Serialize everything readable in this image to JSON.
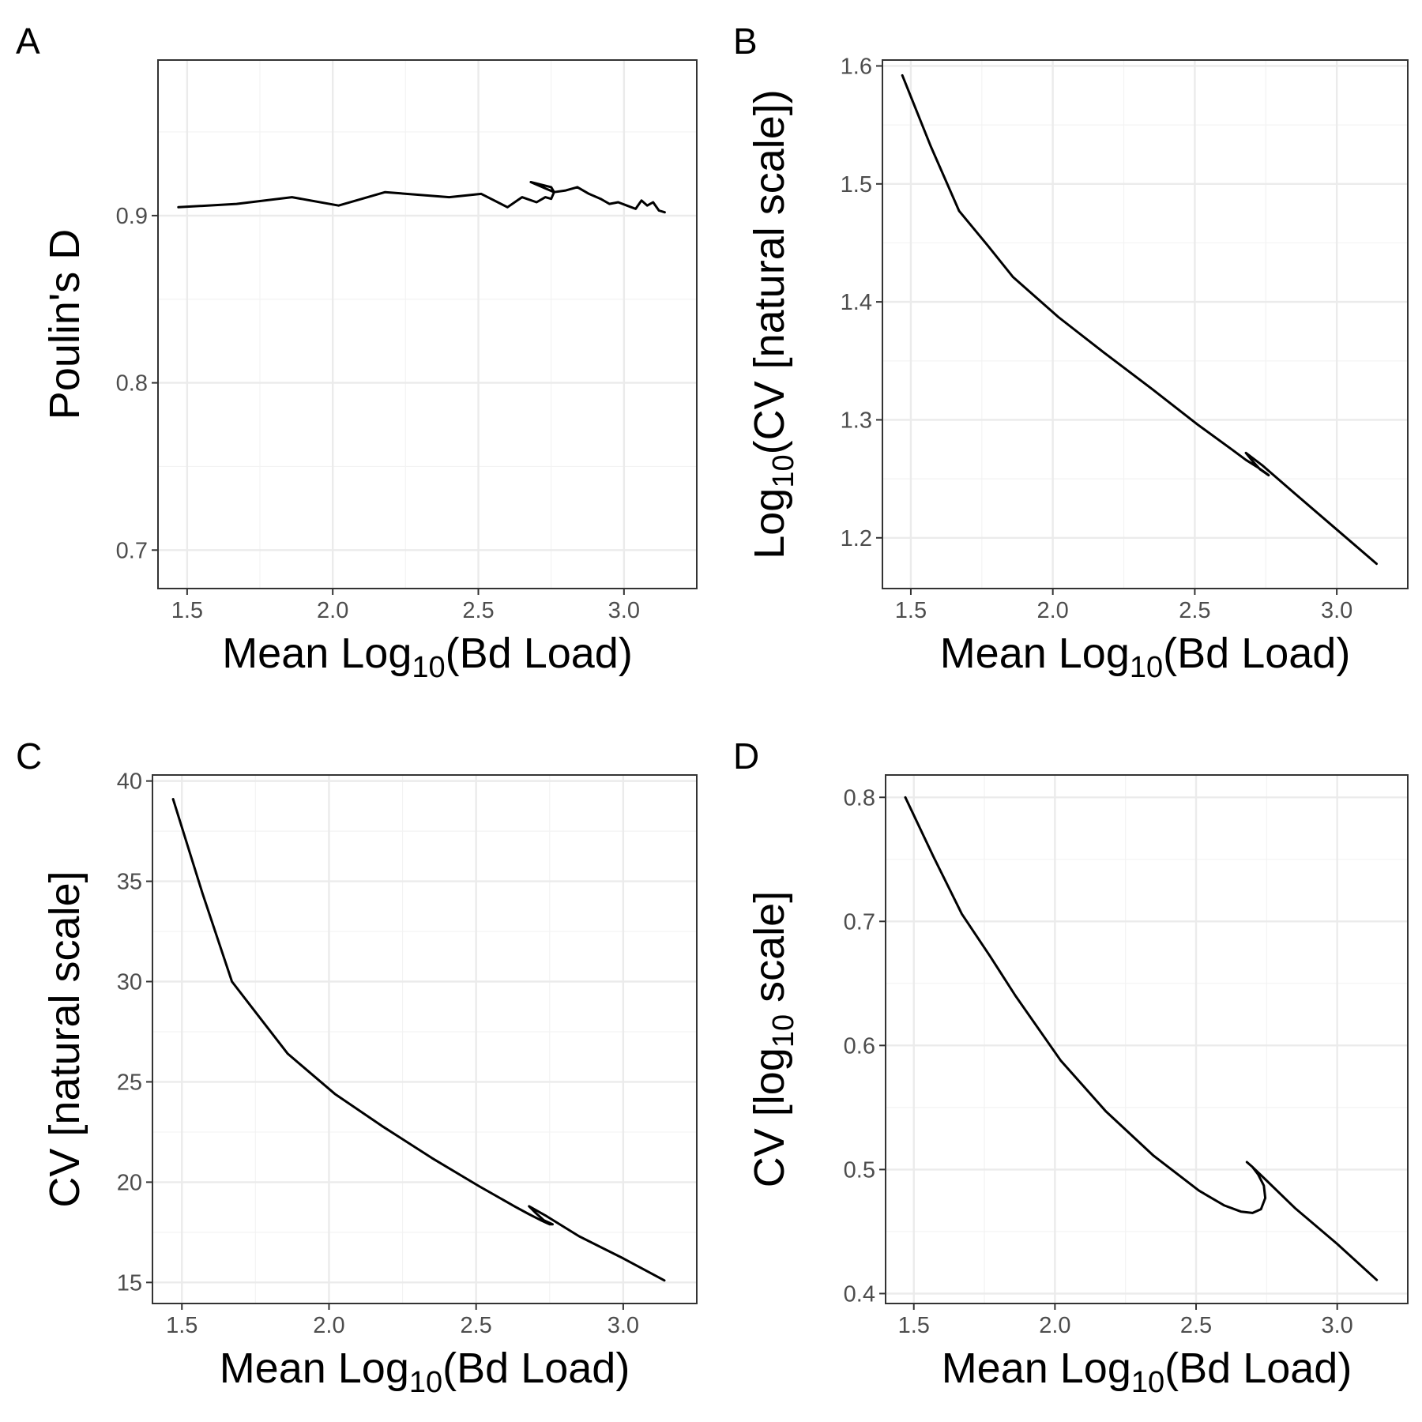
{
  "chart_data": [
    {
      "panel_label": "A",
      "type": "line",
      "xlabel": "Mean Log10(Bd Load)",
      "xlabel_parts": [
        "Mean Log",
        "10",
        "(Bd Load)"
      ],
      "ylabel": "Poulin's D",
      "ylabel_parts": [
        "Poulin's D",
        "",
        ""
      ],
      "xlim": [
        1.4,
        3.25
      ],
      "ylim": [
        0.677,
        0.993
      ],
      "xticks": [
        1.5,
        2.0,
        2.5,
        3.0
      ],
      "xtick_labels": [
        "1.5",
        "2.0",
        "2.5",
        "3.0"
      ],
      "yticks": [
        0.7,
        0.8,
        0.9
      ],
      "ytick_labels": [
        "0.7",
        "0.8",
        "0.9"
      ],
      "grid": true,
      "series": [
        {
          "x": [
            1.47,
            1.67,
            1.86,
            2.02,
            2.18,
            2.4,
            2.51,
            2.6,
            2.65,
            2.7,
            2.73,
            2.75,
            2.76,
            2.75,
            2.68,
            2.72,
            2.76,
            2.8,
            2.84,
            2.88,
            2.92,
            2.95,
            2.98,
            3.01,
            3.04,
            3.06,
            3.08,
            3.1,
            3.12,
            3.14
          ],
          "y": [
            0.905,
            0.907,
            0.911,
            0.906,
            0.914,
            0.911,
            0.913,
            0.905,
            0.911,
            0.908,
            0.911,
            0.91,
            0.914,
            0.917,
            0.92,
            0.917,
            0.914,
            0.915,
            0.917,
            0.913,
            0.91,
            0.907,
            0.908,
            0.906,
            0.904,
            0.909,
            0.906,
            0.908,
            0.903,
            0.902
          ]
        }
      ]
    },
    {
      "panel_label": "B",
      "type": "line",
      "xlabel": "Mean Log10(Bd Load)",
      "xlabel_parts": [
        "Mean Log",
        "10",
        "(Bd Load)"
      ],
      "ylabel": "Log10(CV [natural scale])",
      "ylabel_parts": [
        "Log",
        "10",
        "(CV [natural scale])"
      ],
      "xlim": [
        1.4,
        3.25
      ],
      "ylim": [
        1.157,
        1.605
      ],
      "xticks": [
        1.5,
        2.0,
        2.5,
        3.0
      ],
      "xtick_labels": [
        "1.5",
        "2.0",
        "2.5",
        "3.0"
      ],
      "yticks": [
        1.2,
        1.3,
        1.4,
        1.5,
        1.6
      ],
      "ytick_labels": [
        "1.2",
        "1.3",
        "1.4",
        "1.5",
        "1.6"
      ],
      "grid": true,
      "series": [
        {
          "x": [
            1.47,
            1.57,
            1.67,
            1.77,
            1.86,
            2.02,
            2.18,
            2.35,
            2.51,
            2.63,
            2.68,
            2.72,
            2.75,
            2.76,
            2.73,
            2.7,
            2.68,
            2.74,
            2.85,
            3.0,
            3.14
          ],
          "y": [
            1.592,
            1.532,
            1.477,
            1.448,
            1.421,
            1.387,
            1.357,
            1.326,
            1.296,
            1.275,
            1.266,
            1.26,
            1.255,
            1.253,
            1.258,
            1.266,
            1.272,
            1.261,
            1.238,
            1.207,
            1.178
          ]
        }
      ]
    },
    {
      "panel_label": "C",
      "type": "line",
      "xlabel": "Mean Log10(Bd Load)",
      "xlabel_parts": [
        "Mean Log",
        "10",
        "(Bd Load)"
      ],
      "ylabel": "CV [natural scale]",
      "ylabel_parts": [
        "CV [natural scale]",
        "",
        ""
      ],
      "xlim": [
        1.4,
        3.25
      ],
      "ylim": [
        13.95,
        40.3
      ],
      "xticks": [
        1.5,
        2.0,
        2.5,
        3.0
      ],
      "xtick_labels": [
        "1.5",
        "2.0",
        "2.5",
        "3.0"
      ],
      "yticks": [
        15,
        20,
        25,
        30,
        35,
        40
      ],
      "ytick_labels": [
        "15",
        "20",
        "25",
        "30",
        "35",
        "40"
      ],
      "grid": true,
      "series": [
        {
          "x": [
            1.47,
            1.57,
            1.67,
            1.77,
            1.86,
            2.02,
            2.18,
            2.35,
            2.51,
            2.63,
            2.68,
            2.72,
            2.75,
            2.76,
            2.73,
            2.7,
            2.68,
            2.74,
            2.85,
            3.0,
            3.14
          ],
          "y": [
            39.1,
            34.4,
            30.0,
            28.1,
            26.4,
            24.4,
            22.8,
            21.2,
            19.8,
            18.8,
            18.4,
            18.1,
            17.9,
            17.9,
            18.1,
            18.5,
            18.8,
            18.3,
            17.3,
            16.2,
            15.1
          ]
        }
      ]
    },
    {
      "panel_label": "D",
      "type": "line",
      "xlabel": "Mean Log10(Bd Load)",
      "xlabel_parts": [
        "Mean Log",
        "10",
        "(Bd Load)"
      ],
      "ylabel": "CV [log10 scale]",
      "ylabel_parts": [
        "CV [log",
        "10",
        " scale]"
      ],
      "xlim": [
        1.4,
        3.25
      ],
      "ylim": [
        0.392,
        0.818
      ],
      "xticks": [
        1.5,
        2.0,
        2.5,
        3.0
      ],
      "xtick_labels": [
        "1.5",
        "2.0",
        "2.5",
        "3.0"
      ],
      "yticks": [
        0.4,
        0.5,
        0.6,
        0.7,
        0.8
      ],
      "ytick_labels": [
        "0.4",
        "0.5",
        "0.6",
        "0.7",
        "0.8"
      ],
      "grid": true,
      "series": [
        {
          "x": [
            1.47,
            1.57,
            1.67,
            1.77,
            1.86,
            2.02,
            2.18,
            2.35,
            2.51,
            2.6,
            2.66,
            2.7,
            2.73,
            2.745,
            2.74,
            2.72,
            2.7,
            2.68,
            2.7,
            2.75,
            2.85,
            3.0,
            3.14
          ],
          "y": [
            0.8,
            0.752,
            0.706,
            0.672,
            0.64,
            0.588,
            0.547,
            0.511,
            0.483,
            0.471,
            0.466,
            0.465,
            0.468,
            0.477,
            0.487,
            0.496,
            0.502,
            0.506,
            0.502,
            0.491,
            0.469,
            0.44,
            0.411
          ]
        }
      ]
    }
  ]
}
